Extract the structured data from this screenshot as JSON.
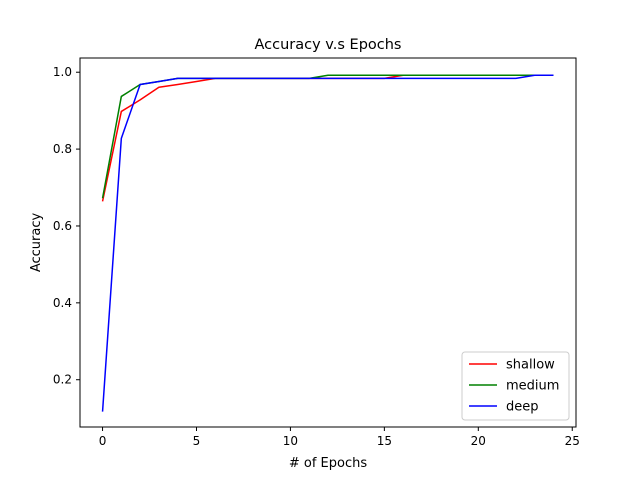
{
  "chart_data": {
    "type": "line",
    "title": "Accuracy v.s Epochs",
    "xlabel": "# of Epochs",
    "ylabel": "Accuracy",
    "xlim": [
      -1.2,
      25.2
    ],
    "ylim": [
      0.077,
      1.037
    ],
    "xticks": [
      0,
      5,
      10,
      15,
      20,
      25
    ],
    "yticks": [
      0.2,
      0.4,
      0.6,
      0.8,
      1.0
    ],
    "xtick_labels": [
      "0",
      "5",
      "10",
      "15",
      "20",
      "25"
    ],
    "ytick_labels": [
      "0.2",
      "0.4",
      "0.6",
      "0.8",
      "1.0"
    ],
    "grid": false,
    "legend_position": "lower-right",
    "x": [
      0,
      1,
      2,
      3,
      4,
      5,
      6,
      7,
      8,
      9,
      10,
      11,
      12,
      13,
      14,
      15,
      16,
      17,
      18,
      19,
      20,
      21,
      22,
      23,
      24
    ],
    "series": [
      {
        "name": "shallow",
        "color": "#ff0000",
        "values": [
          0.664,
          0.898,
          0.928,
          0.961,
          0.968,
          0.976,
          0.984,
          0.984,
          0.984,
          0.984,
          0.984,
          0.984,
          0.984,
          0.984,
          0.984,
          0.984,
          0.992,
          0.992,
          0.992,
          0.992,
          0.992,
          0.992,
          0.992,
          0.992,
          0.992
        ]
      },
      {
        "name": "medium",
        "color": "#008000",
        "values": [
          0.672,
          0.937,
          0.968,
          0.976,
          0.984,
          0.984,
          0.984,
          0.984,
          0.984,
          0.984,
          0.984,
          0.984,
          0.992,
          0.992,
          0.992,
          0.992,
          0.992,
          0.992,
          0.992,
          0.992,
          0.992,
          0.992,
          0.992,
          0.992,
          0.992
        ]
      },
      {
        "name": "deep",
        "color": "#0000ff",
        "values": [
          0.117,
          0.828,
          0.968,
          0.976,
          0.984,
          0.984,
          0.984,
          0.984,
          0.984,
          0.984,
          0.984,
          0.984,
          0.984,
          0.984,
          0.984,
          0.984,
          0.984,
          0.984,
          0.984,
          0.984,
          0.984,
          0.984,
          0.984,
          0.992,
          0.992
        ]
      }
    ]
  }
}
